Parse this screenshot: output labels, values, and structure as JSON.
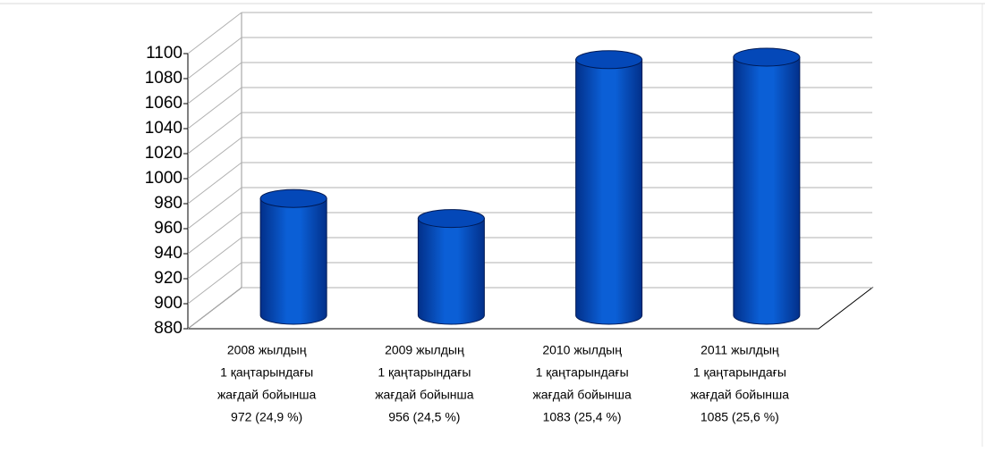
{
  "chart_data": {
    "type": "bar3d",
    "categories": [
      [
        "2008 жылдың",
        "1 қаңтарындағы",
        "жағдай бойынша",
        "972 (24,9 %)"
      ],
      [
        "2009 жылдың",
        "1 қаңтарындағы",
        "жағдай бойынша",
        "956 (24,5 %)"
      ],
      [
        "2010 жылдың",
        "1 қаңтарындағы",
        "жағдай бойынша",
        "1083 (25,4 %)"
      ],
      [
        "2011 жылдың",
        "1 қаңтарындағы",
        "жағдай бойынша",
        "1085 (25,6 %)"
      ]
    ],
    "values": [
      972,
      956,
      1083,
      1085
    ],
    "color": "#0a52c4",
    "ylim": [
      880,
      1100
    ],
    "yticks": [
      880,
      900,
      920,
      940,
      960,
      980,
      1000,
      1020,
      1040,
      1060,
      1080,
      1100
    ],
    "grid": true
  }
}
